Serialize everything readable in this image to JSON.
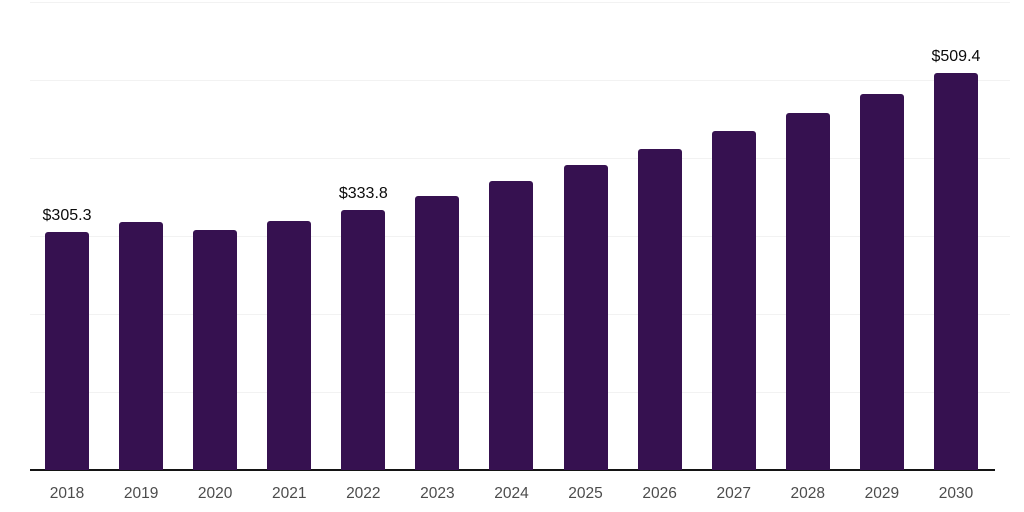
{
  "page": {
    "background": "#ffffff"
  },
  "chart_data": {
    "type": "bar",
    "title": "",
    "xlabel": "",
    "ylabel": "",
    "categories": [
      "2018",
      "2019",
      "2020",
      "2021",
      "2022",
      "2023",
      "2024",
      "2025",
      "2026",
      "2027",
      "2028",
      "2029",
      "2030"
    ],
    "values": [
      305.3,
      318.0,
      308.1,
      319.0,
      333.8,
      351.8,
      370.8,
      390.9,
      412.0,
      434.3,
      457.7,
      482.4,
      509.4
    ],
    "point_labels": [
      "$305.3",
      null,
      null,
      null,
      "$333.8",
      null,
      null,
      null,
      null,
      null,
      null,
      null,
      "$509.4"
    ],
    "ylim": [
      0,
      600
    ],
    "gridline_step": 100,
    "grid": true,
    "legend": false,
    "y_axis_labels_visible": false,
    "colors": {
      "bar": "#361150",
      "gridline": "#f2f2f2",
      "axis_line": "#141414",
      "value_label": "#0b0b0b",
      "tick_label": "#4c4c4c"
    }
  }
}
